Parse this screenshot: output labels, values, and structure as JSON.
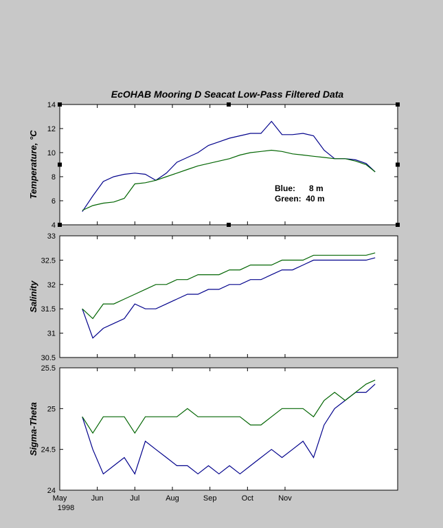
{
  "title": "EcOHAB Mooring D  Seacat Low-Pass Filtered Data",
  "colors": {
    "background": "#c8c8c8",
    "plot_bg": "#ffffff",
    "blue": "#00008b",
    "green": "#006400"
  },
  "chart_data": [
    {
      "type": "line",
      "ylabel": "Temperature, °C",
      "ylim": [
        4,
        14
      ],
      "yticks": [
        "4",
        "6",
        "8",
        "10",
        "12",
        "14"
      ],
      "legend": {
        "placement": "lower-right",
        "blue": "Blue:      8 m",
        "green": "Green:  40 m"
      },
      "x": [
        0,
        7,
        14,
        21,
        28,
        35,
        42,
        49,
        56,
        63,
        70,
        77,
        84,
        91,
        98,
        105,
        112,
        119,
        126,
        133,
        140,
        147,
        154,
        161,
        168,
        175,
        182,
        189,
        195
      ],
      "series": [
        {
          "color": "blue",
          "values": [
            5.1,
            6.4,
            7.6,
            8.0,
            8.2,
            8.3,
            8.2,
            7.7,
            8.3,
            9.2,
            9.6,
            10.0,
            10.6,
            10.9,
            11.2,
            11.4,
            11.6,
            11.6,
            12.6,
            11.5,
            11.5,
            11.6,
            11.4,
            10.2,
            9.5,
            9.5,
            9.4,
            9.1,
            8.4
          ]
        },
        {
          "color": "green",
          "values": [
            5.2,
            5.6,
            5.8,
            5.9,
            6.2,
            7.4,
            7.5,
            7.7,
            8.0,
            8.3,
            8.6,
            8.9,
            9.1,
            9.3,
            9.5,
            9.8,
            10.0,
            10.1,
            10.2,
            10.1,
            9.9,
            9.8,
            9.7,
            9.6,
            9.5,
            9.5,
            9.3,
            9.0,
            8.4
          ]
        }
      ]
    },
    {
      "type": "line",
      "ylabel": "Salinity",
      "ylim": [
        30.5,
        33
      ],
      "yticks": [
        "30.5",
        "31",
        "31.5",
        "32",
        "32.5",
        "33"
      ],
      "x": [
        0,
        7,
        14,
        21,
        28,
        35,
        42,
        49,
        56,
        63,
        70,
        77,
        84,
        91,
        98,
        105,
        112,
        119,
        126,
        133,
        140,
        147,
        154,
        161,
        168,
        175,
        182,
        189,
        195
      ],
      "series": [
        {
          "color": "blue",
          "values": [
            31.5,
            30.9,
            31.1,
            31.2,
            31.3,
            31.6,
            31.5,
            31.5,
            31.6,
            31.7,
            31.8,
            31.8,
            31.9,
            31.9,
            32.0,
            32.0,
            32.1,
            32.1,
            32.2,
            32.3,
            32.3,
            32.4,
            32.5,
            32.5,
            32.5,
            32.5,
            32.5,
            32.5,
            32.55
          ]
        },
        {
          "color": "green",
          "values": [
            31.5,
            31.3,
            31.6,
            31.6,
            31.7,
            31.8,
            31.9,
            32.0,
            32.0,
            32.1,
            32.1,
            32.2,
            32.2,
            32.2,
            32.3,
            32.3,
            32.4,
            32.4,
            32.4,
            32.5,
            32.5,
            32.5,
            32.6,
            32.6,
            32.6,
            32.6,
            32.6,
            32.6,
            32.65
          ]
        }
      ]
    },
    {
      "type": "line",
      "ylabel": "Sigma-Theta",
      "ylim": [
        24,
        25.5
      ],
      "yticks": [
        "24",
        "24.5",
        "25",
        "25.5"
      ],
      "x": [
        0,
        7,
        14,
        21,
        28,
        35,
        42,
        49,
        56,
        63,
        70,
        77,
        84,
        91,
        98,
        105,
        112,
        119,
        126,
        133,
        140,
        147,
        154,
        161,
        168,
        175,
        182,
        189,
        195
      ],
      "series": [
        {
          "color": "blue",
          "values": [
            24.9,
            24.5,
            24.2,
            24.3,
            24.4,
            24.2,
            24.6,
            24.5,
            24.4,
            24.3,
            24.3,
            24.2,
            24.3,
            24.2,
            24.3,
            24.2,
            24.3,
            24.4,
            24.5,
            24.4,
            24.5,
            24.6,
            24.4,
            24.8,
            25.0,
            25.1,
            25.2,
            25.2,
            25.3
          ]
        },
        {
          "color": "green",
          "values": [
            24.9,
            24.7,
            24.9,
            24.9,
            24.9,
            24.7,
            24.9,
            24.9,
            24.9,
            24.9,
            25.0,
            24.9,
            24.9,
            24.9,
            24.9,
            24.9,
            24.8,
            24.8,
            24.9,
            25.0,
            25.0,
            25.0,
            24.9,
            25.1,
            25.2,
            25.1,
            25.2,
            25.3,
            25.35
          ]
        }
      ]
    }
  ],
  "xaxis": {
    "xlim": [
      -15,
      210
    ],
    "ticks": [
      {
        "day": -15,
        "label": "May"
      },
      {
        "day": 10,
        "label": "Jun"
      },
      {
        "day": 35,
        "label": "Jul"
      },
      {
        "day": 60,
        "label": "Aug"
      },
      {
        "day": 85,
        "label": "Sep"
      },
      {
        "day": 110,
        "label": "Oct"
      },
      {
        "day": 135,
        "label": "Nov"
      }
    ],
    "year_label": "1998"
  }
}
